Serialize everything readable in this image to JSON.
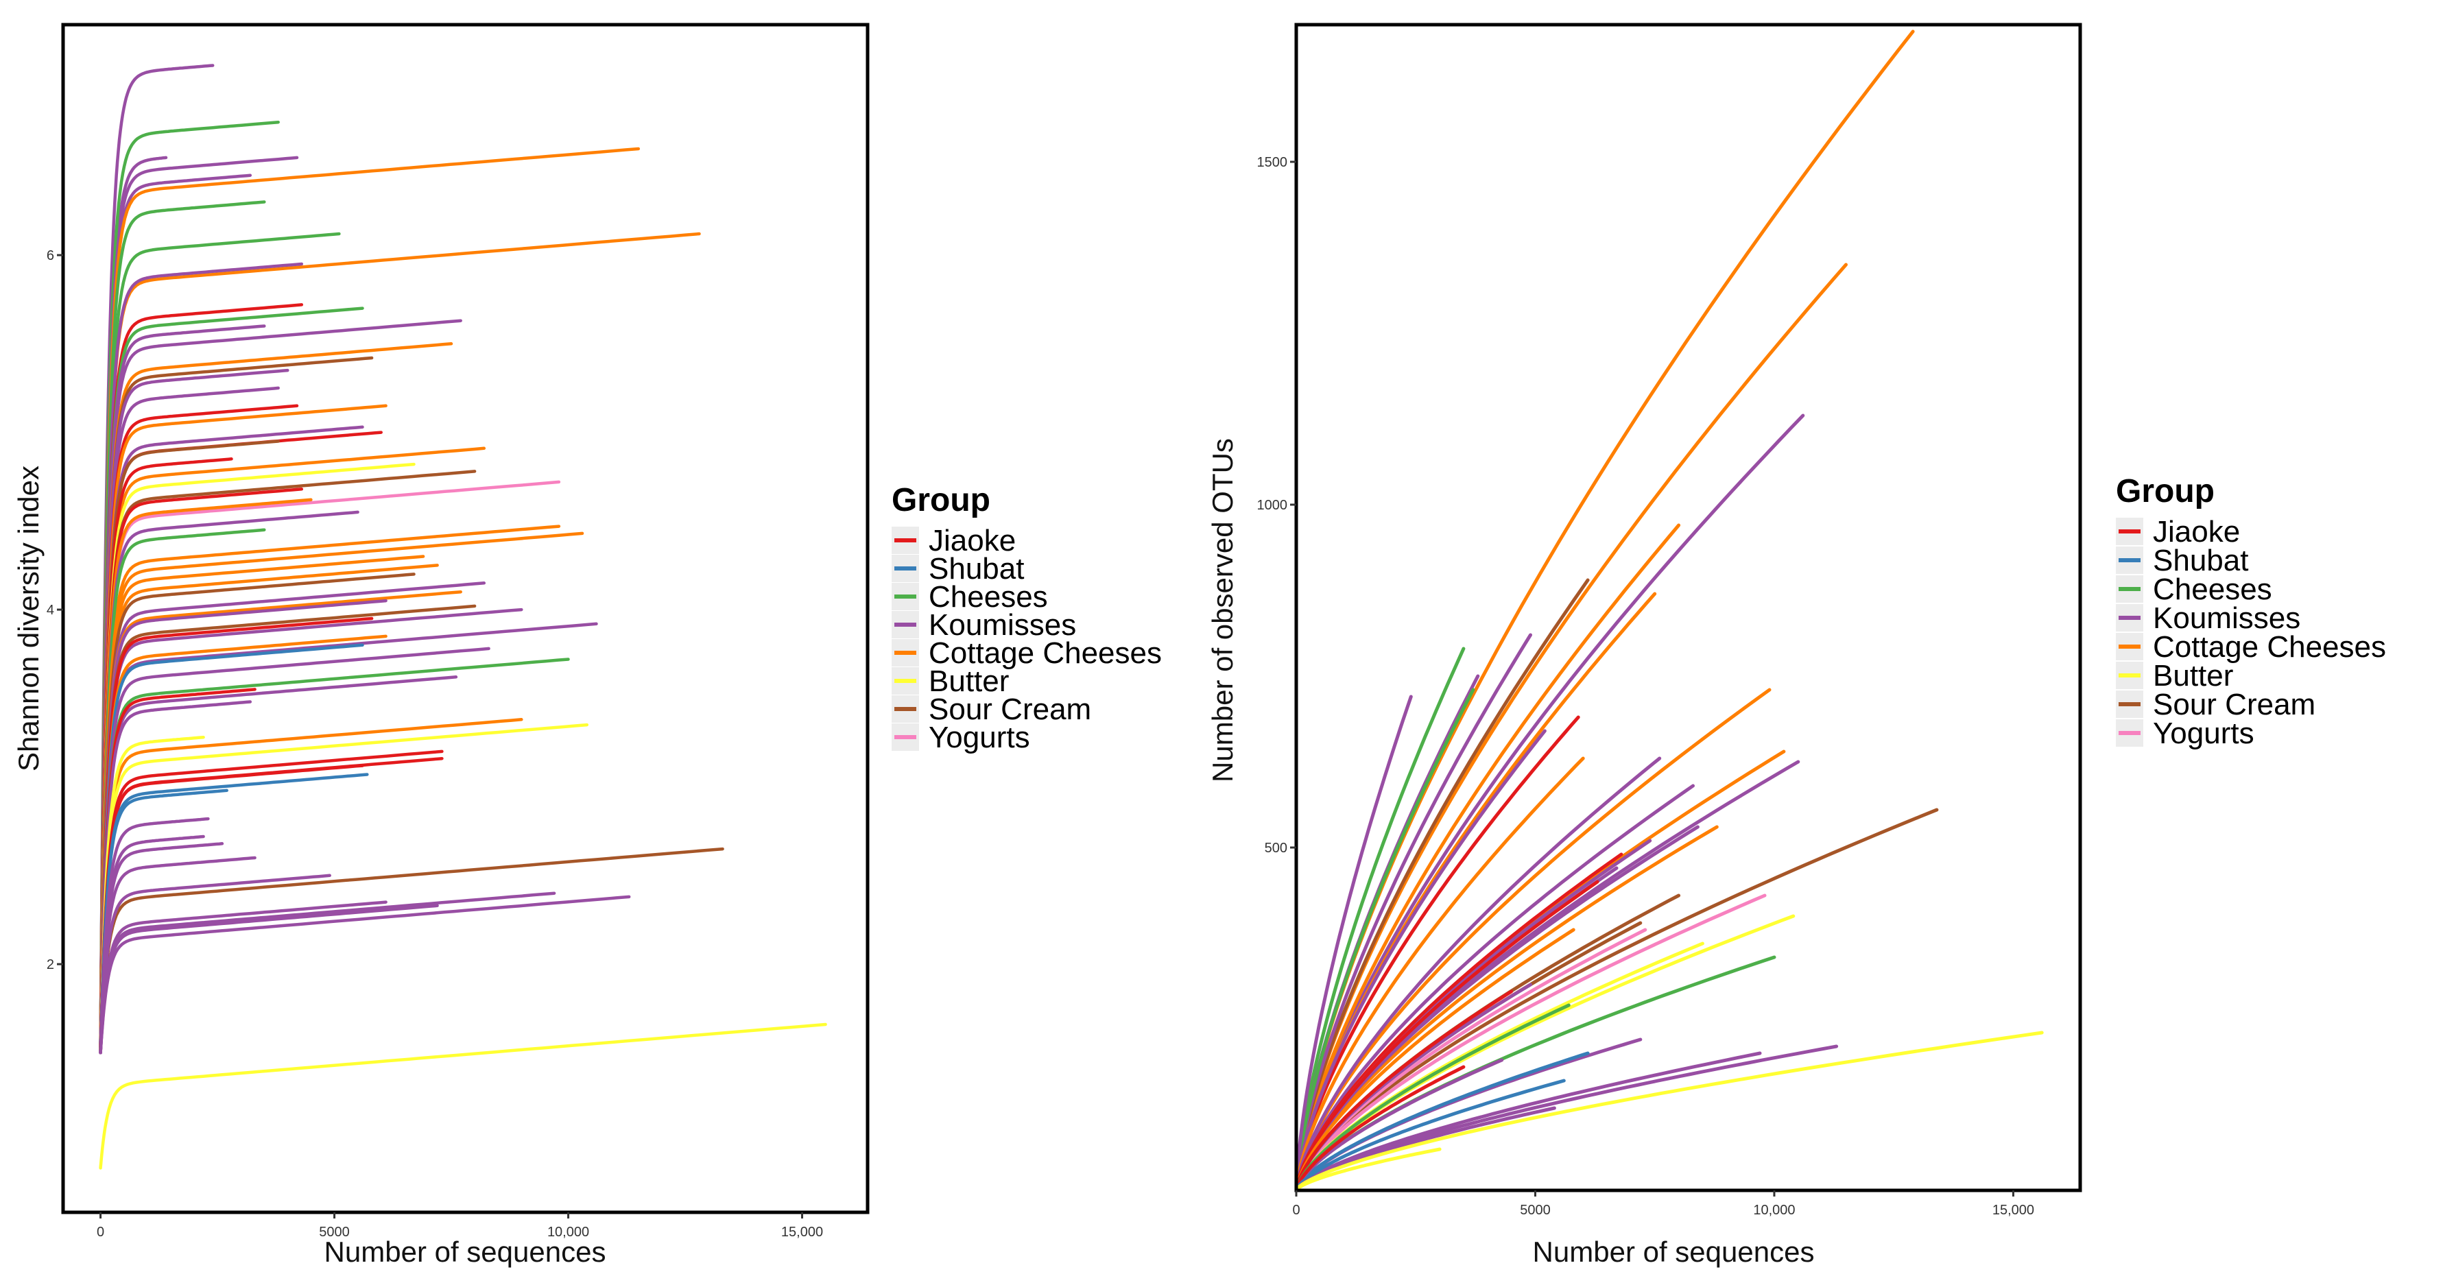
{
  "chart_data": [
    {
      "type": "line",
      "title": "",
      "xlabel": "Number of sequences",
      "ylabel": "Shannon diversity index",
      "xlim": [
        -800,
        16400
      ],
      "ylim": [
        0.6,
        7.3
      ],
      "xticks": [
        {
          "value": 0,
          "label": "0"
        },
        {
          "value": 5000,
          "label": "5000"
        },
        {
          "value": 10000,
          "label": "10,000"
        },
        {
          "value": 15000,
          "label": "15,000"
        }
      ],
      "yticks": [
        {
          "value": 2,
          "label": "2"
        },
        {
          "value": 4,
          "label": "4"
        },
        {
          "value": 6,
          "label": "6"
        }
      ],
      "grid": false,
      "legend": "right",
      "curve_model": "y = y0 + (ymax - y0) * (1 - exp(-x / 150)) + slope * x",
      "series": [
        {
          "group": "Koumisses",
          "x_max": 2400,
          "y_end": 7.07,
          "y0": 1.5
        },
        {
          "group": "Koumisses",
          "x_max": 1400,
          "y_end": 6.55,
          "y0": 1.5
        },
        {
          "group": "Cheeses",
          "x_max": 3800,
          "y_end": 6.75,
          "y0": 1.5
        },
        {
          "group": "Koumisses",
          "x_max": 4200,
          "y_end": 6.55,
          "y0": 1.5
        },
        {
          "group": "Koumisses",
          "x_max": 3200,
          "y_end": 6.45,
          "y0": 1.5
        },
        {
          "group": "Cottage Cheeses",
          "x_max": 11500,
          "y_end": 6.6,
          "y0": 1.5
        },
        {
          "group": "Cheeses",
          "x_max": 3500,
          "y_end": 6.3,
          "y0": 1.5
        },
        {
          "group": "Cottage Cheeses",
          "x_max": 12800,
          "y_end": 6.12,
          "y0": 1.5
        },
        {
          "group": "Cheeses",
          "x_max": 5100,
          "y_end": 6.12,
          "y0": 1.5
        },
        {
          "group": "Koumisses",
          "x_max": 4300,
          "y_end": 5.95,
          "y0": 1.5
        },
        {
          "group": "Jiaoke",
          "x_max": 4300,
          "y_end": 5.72,
          "y0": 1.5
        },
        {
          "group": "Cheeses",
          "x_max": 5600,
          "y_end": 5.7,
          "y0": 1.5
        },
        {
          "group": "Koumisses",
          "x_max": 7700,
          "y_end": 5.63,
          "y0": 1.5
        },
        {
          "group": "Koumisses",
          "x_max": 3500,
          "y_end": 5.6,
          "y0": 1.5
        },
        {
          "group": "Cottage Cheeses",
          "x_max": 7500,
          "y_end": 5.5,
          "y0": 1.5
        },
        {
          "group": "Sour Cream",
          "x_max": 5800,
          "y_end": 5.42,
          "y0": 1.5
        },
        {
          "group": "Koumisses",
          "x_max": 4000,
          "y_end": 5.35,
          "y0": 1.5
        },
        {
          "group": "Koumisses",
          "x_max": 3800,
          "y_end": 5.25,
          "y0": 1.5
        },
        {
          "group": "Jiaoke",
          "x_max": 4200,
          "y_end": 5.15,
          "y0": 1.5
        },
        {
          "group": "Cottage Cheeses",
          "x_max": 6100,
          "y_end": 5.15,
          "y0": 1.5
        },
        {
          "group": "Koumisses",
          "x_max": 5600,
          "y_end": 5.03,
          "y0": 1.5
        },
        {
          "group": "Jiaoke",
          "x_max": 6000,
          "y_end": 5.0,
          "y0": 1.5
        },
        {
          "group": "Sour Cream",
          "x_max": 3800,
          "y_end": 4.95,
          "y0": 1.5
        },
        {
          "group": "Cottage Cheeses",
          "x_max": 8200,
          "y_end": 4.91,
          "y0": 1.5
        },
        {
          "group": "Jiaoke",
          "x_max": 2800,
          "y_end": 4.85,
          "y0": 1.5
        },
        {
          "group": "Butter",
          "x_max": 6700,
          "y_end": 4.82,
          "y0": 1.5
        },
        {
          "group": "Sour Cream",
          "x_max": 8000,
          "y_end": 4.78,
          "y0": 1.5
        },
        {
          "group": "Yogurts",
          "x_max": 9800,
          "y_end": 4.72,
          "y0": 1.5
        },
        {
          "group": "Jiaoke",
          "x_max": 4300,
          "y_end": 4.68,
          "y0": 1.5
        },
        {
          "group": "Cottage Cheeses",
          "x_max": 4500,
          "y_end": 4.62,
          "y0": 1.5
        },
        {
          "group": "Koumisses",
          "x_max": 5500,
          "y_end": 4.55,
          "y0": 1.5
        },
        {
          "group": "Cottage Cheeses",
          "x_max": 9800,
          "y_end": 4.47,
          "y0": 1.5
        },
        {
          "group": "Cheeses",
          "x_max": 3500,
          "y_end": 4.45,
          "y0": 1.5
        },
        {
          "group": "Cottage Cheeses",
          "x_max": 10300,
          "y_end": 4.43,
          "y0": 1.5
        },
        {
          "group": "Cottage Cheeses",
          "x_max": 6900,
          "y_end": 4.3,
          "y0": 1.5
        },
        {
          "group": "Cottage Cheeses",
          "x_max": 7200,
          "y_end": 4.25,
          "y0": 1.5
        },
        {
          "group": "Sour Cream",
          "x_max": 6700,
          "y_end": 4.2,
          "y0": 1.5
        },
        {
          "group": "Koumisses",
          "x_max": 8200,
          "y_end": 4.15,
          "y0": 1.5
        },
        {
          "group": "Cottage Cheeses",
          "x_max": 7700,
          "y_end": 4.1,
          "y0": 1.5
        },
        {
          "group": "Koumisses",
          "x_max": 6100,
          "y_end": 4.05,
          "y0": 1.5
        },
        {
          "group": "Sour Cream",
          "x_max": 8000,
          "y_end": 4.02,
          "y0": 1.5
        },
        {
          "group": "Koumisses",
          "x_max": 9000,
          "y_end": 4.0,
          "y0": 1.5
        },
        {
          "group": "Jiaoke",
          "x_max": 5800,
          "y_end": 3.95,
          "y0": 1.5
        },
        {
          "group": "Koumisses",
          "x_max": 10600,
          "y_end": 3.92,
          "y0": 1.5
        },
        {
          "group": "Cottage Cheeses",
          "x_max": 6100,
          "y_end": 3.85,
          "y0": 1.5
        },
        {
          "group": "Shubat",
          "x_max": 5600,
          "y_end": 3.8,
          "y0": 1.5
        },
        {
          "group": "Koumisses",
          "x_max": 8300,
          "y_end": 3.78,
          "y0": 1.5
        },
        {
          "group": "Cheeses",
          "x_max": 10000,
          "y_end": 3.72,
          "y0": 1.5
        },
        {
          "group": "Koumisses",
          "x_max": 7600,
          "y_end": 3.62,
          "y0": 1.5
        },
        {
          "group": "Jiaoke",
          "x_max": 3300,
          "y_end": 3.55,
          "y0": 1.5
        },
        {
          "group": "Koumisses",
          "x_max": 3200,
          "y_end": 3.48,
          "y0": 1.5
        },
        {
          "group": "Cottage Cheeses",
          "x_max": 9000,
          "y_end": 3.38,
          "y0": 1.5
        },
        {
          "group": "Butter",
          "x_max": 10400,
          "y_end": 3.35,
          "y0": 1.5
        },
        {
          "group": "Butter",
          "x_max": 2200,
          "y_end": 3.28,
          "y0": 1.5
        },
        {
          "group": "Jiaoke",
          "x_max": 7300,
          "y_end": 3.2,
          "y0": 1.5
        },
        {
          "group": "Jiaoke",
          "x_max": 7300,
          "y_end": 3.16,
          "y0": 1.5
        },
        {
          "group": "Jiaoke",
          "x_max": 5600,
          "y_end": 3.12,
          "y0": 1.5
        },
        {
          "group": "Shubat",
          "x_max": 5700,
          "y_end": 3.07,
          "y0": 1.5
        },
        {
          "group": "Shubat",
          "x_max": 2700,
          "y_end": 2.98,
          "y0": 1.5
        },
        {
          "group": "Koumisses",
          "x_max": 2300,
          "y_end": 2.82,
          "y0": 1.5
        },
        {
          "group": "Koumisses",
          "x_max": 2200,
          "y_end": 2.72,
          "y0": 1.5
        },
        {
          "group": "Koumisses",
          "x_max": 2600,
          "y_end": 2.68,
          "y0": 1.5
        },
        {
          "group": "Sour Cream",
          "x_max": 13300,
          "y_end": 2.65,
          "y0": 1.5
        },
        {
          "group": "Koumisses",
          "x_max": 3300,
          "y_end": 2.6,
          "y0": 1.5
        },
        {
          "group": "Koumisses",
          "x_max": 4900,
          "y_end": 2.5,
          "y0": 1.5
        },
        {
          "group": "Koumisses",
          "x_max": 9700,
          "y_end": 2.4,
          "y0": 1.5
        },
        {
          "group": "Koumisses",
          "x_max": 11300,
          "y_end": 2.38,
          "y0": 1.5
        },
        {
          "group": "Koumisses",
          "x_max": 6100,
          "y_end": 2.35,
          "y0": 1.5
        },
        {
          "group": "Koumisses",
          "x_max": 7200,
          "y_end": 2.33,
          "y0": 1.5
        },
        {
          "group": "Butter",
          "x_max": 15500,
          "y_end": 1.66,
          "y0": 0.85
        }
      ]
    },
    {
      "type": "line",
      "title": "",
      "xlabel": "Number of sequences",
      "ylabel": "Number of observed OTUs",
      "xlim": [
        0,
        16400
      ],
      "ylim": [
        0,
        1700
      ],
      "xticks": [
        {
          "value": 0,
          "label": "0"
        },
        {
          "value": 5000,
          "label": "5000"
        },
        {
          "value": 10000,
          "label": "10,000"
        },
        {
          "value": 15000,
          "label": "15,000"
        }
      ],
      "yticks": [
        {
          "value": 500,
          "label": "500"
        },
        {
          "value": 1000,
          "label": "1000"
        },
        {
          "value": 1500,
          "label": "1500"
        }
      ],
      "grid": false,
      "legend": "right",
      "curve_model": "y = y_end * (x / x_max) ^ 0.68",
      "series": [
        {
          "group": "Cottage Cheeses",
          "x_max": 12900,
          "y_end": 1690
        },
        {
          "group": "Cottage Cheeses",
          "x_max": 11500,
          "y_end": 1350
        },
        {
          "group": "Koumisses",
          "x_max": 10600,
          "y_end": 1130
        },
        {
          "group": "Cottage Cheeses",
          "x_max": 8000,
          "y_end": 970
        },
        {
          "group": "Sour Cream",
          "x_max": 6100,
          "y_end": 890
        },
        {
          "group": "Cottage Cheeses",
          "x_max": 7500,
          "y_end": 870
        },
        {
          "group": "Cheeses",
          "x_max": 3500,
          "y_end": 790
        },
        {
          "group": "Koumisses",
          "x_max": 4900,
          "y_end": 810
        },
        {
          "group": "Koumisses",
          "x_max": 3800,
          "y_end": 750
        },
        {
          "group": "Cheeses",
          "x_max": 3700,
          "y_end": 730
        },
        {
          "group": "Cottage Cheeses",
          "x_max": 9900,
          "y_end": 730
        },
        {
          "group": "Koumisses",
          "x_max": 2400,
          "y_end": 720
        },
        {
          "group": "Jiaoke",
          "x_max": 5900,
          "y_end": 690
        },
        {
          "group": "Koumisses",
          "x_max": 5200,
          "y_end": 670
        },
        {
          "group": "Cottage Cheeses",
          "x_max": 10200,
          "y_end": 640
        },
        {
          "group": "Cottage Cheeses",
          "x_max": 6000,
          "y_end": 630
        },
        {
          "group": "Koumisses",
          "x_max": 7600,
          "y_end": 630
        },
        {
          "group": "Koumisses",
          "x_max": 10500,
          "y_end": 625
        },
        {
          "group": "Koumisses",
          "x_max": 8300,
          "y_end": 590
        },
        {
          "group": "Sour Cream",
          "x_max": 13400,
          "y_end": 555
        },
        {
          "group": "Cottage Cheeses",
          "x_max": 8800,
          "y_end": 530
        },
        {
          "group": "Koumisses",
          "x_max": 8400,
          "y_end": 530
        },
        {
          "group": "Koumisses",
          "x_max": 7400,
          "y_end": 510
        },
        {
          "group": "Jiaoke",
          "x_max": 6800,
          "y_end": 490
        },
        {
          "group": "Koumisses",
          "x_max": 6700,
          "y_end": 470
        },
        {
          "group": "Jiaoke",
          "x_max": 6300,
          "y_end": 450
        },
        {
          "group": "Sour Cream",
          "x_max": 8000,
          "y_end": 430
        },
        {
          "group": "Yogurts",
          "x_max": 9800,
          "y_end": 430
        },
        {
          "group": "Butter",
          "x_max": 10400,
          "y_end": 400
        },
        {
          "group": "Sour Cream",
          "x_max": 7200,
          "y_end": 390
        },
        {
          "group": "Yogurts",
          "x_max": 7300,
          "y_end": 380
        },
        {
          "group": "Cottage Cheeses",
          "x_max": 5800,
          "y_end": 380
        },
        {
          "group": "Butter",
          "x_max": 8500,
          "y_end": 360
        },
        {
          "group": "Cheeses",
          "x_max": 10000,
          "y_end": 340
        },
        {
          "group": "Koumisses",
          "x_max": 4900,
          "y_end": 300
        },
        {
          "group": "Jiaoke",
          "x_max": 4500,
          "y_end": 290
        },
        {
          "group": "Cheeses",
          "x_max": 5700,
          "y_end": 270
        },
        {
          "group": "Koumisses",
          "x_max": 7200,
          "y_end": 220
        },
        {
          "group": "Shubat",
          "x_max": 6100,
          "y_end": 200
        },
        {
          "group": "Koumisses",
          "x_max": 11300,
          "y_end": 210
        },
        {
          "group": "Koumisses",
          "x_max": 9700,
          "y_end": 200
        },
        {
          "group": "Koumisses",
          "x_max": 4300,
          "y_end": 190
        },
        {
          "group": "Jiaoke",
          "x_max": 3500,
          "y_end": 180
        },
        {
          "group": "Shubat",
          "x_max": 5600,
          "y_end": 160
        },
        {
          "group": "Koumisses",
          "x_max": 5400,
          "y_end": 120
        },
        {
          "group": "Butter",
          "x_max": 15600,
          "y_end": 230
        },
        {
          "group": "Butter",
          "x_max": 3000,
          "y_end": 60
        }
      ]
    }
  ],
  "legend": {
    "title": "Group",
    "items": [
      {
        "label": "Jiaoke",
        "color": "#E31A1C"
      },
      {
        "label": "Shubat",
        "color": "#377EB8"
      },
      {
        "label": "Cheeses",
        "color": "#4DAF4A"
      },
      {
        "label": "Koumisses",
        "color": "#984EA3"
      },
      {
        "label": "Cottage Cheeses",
        "color": "#FF7F00"
      },
      {
        "label": "Butter",
        "color": "#FFFF33"
      },
      {
        "label": "Sour Cream",
        "color": "#A65628"
      },
      {
        "label": "Yogurts",
        "color": "#F781BF"
      }
    ]
  }
}
